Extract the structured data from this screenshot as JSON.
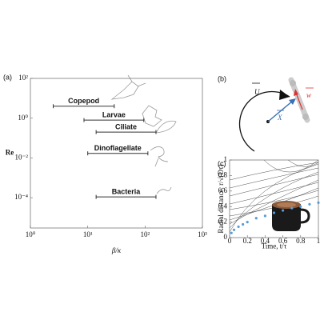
{
  "chart_data": [
    {
      "type": "interval",
      "panel_label": "(a)",
      "xlabel": "β/κ",
      "ylabel": "Re",
      "categories": [
        "Copepod",
        "Larvae",
        "Ciliate",
        "Dinoflagellate",
        "Bacteria"
      ],
      "values": [
        4,
        0.8,
        0.2,
        0.017,
        0.00011
      ],
      "x_low": [
        2.5,
        8.6,
        14,
        10,
        14
      ],
      "x_high": [
        29,
        95,
        155,
        112,
        155
      ],
      "log_x": true,
      "log_y": true,
      "xlim": [
        1,
        1000
      ],
      "ylim": [
        3e-06,
        100
      ],
      "xticks": [
        {
          "value": 1,
          "label": "10⁰"
        },
        {
          "value": 10,
          "label": "10¹"
        },
        {
          "value": 100,
          "label": "10²"
        },
        {
          "value": 1000,
          "label": "10³"
        }
      ],
      "yticks": [
        {
          "value": 0.0001,
          "label": "10⁻⁴"
        },
        {
          "value": 0.01,
          "label": "10⁻²"
        },
        {
          "value": 1,
          "label": "10⁰"
        },
        {
          "value": 100,
          "label": "10²"
        }
      ],
      "color": "#333333"
    },
    {
      "type": "scatter",
      "panel_label": "(c)",
      "xlabel": "Time, t/τ",
      "ylabel": "Radial distance, r/√(Dτ)",
      "x": [
        0.02,
        0.05,
        0.1,
        0.15,
        0.2,
        0.3,
        0.4,
        0.5,
        0.6,
        0.7,
        0.8,
        0.9,
        1
      ],
      "values": [
        0.06,
        0.1,
        0.14,
        0.17,
        0.2,
        0.25,
        0.28,
        0.32,
        0.35,
        0.38,
        0.4,
        0.43,
        0.45
      ],
      "xlim": [
        0,
        1
      ],
      "ylim": [
        0,
        1
      ],
      "xticks": [
        0,
        0.2,
        0.4,
        0.6,
        0.8,
        1
      ],
      "yticks": [
        0,
        0.2,
        0.4,
        0.6,
        0.8,
        1
      ],
      "color": "#5b9bd5"
    }
  ],
  "diagram_b": {
    "panel_label": "(b)",
    "labels": {
      "U": "U",
      "X": "X",
      "w": "w"
    }
  }
}
